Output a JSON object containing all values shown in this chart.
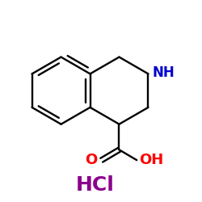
{
  "bg_color": "#ffffff",
  "bond_color": "#000000",
  "NH_color": "#0000cc",
  "O_color": "#ff0000",
  "HCl_color": "#8b008b",
  "HCl_text": "HCl",
  "NH_text": "NH",
  "O_text": "O",
  "OH_text": "OH",
  "figsize": [
    2.5,
    2.5
  ],
  "dpi": 100
}
